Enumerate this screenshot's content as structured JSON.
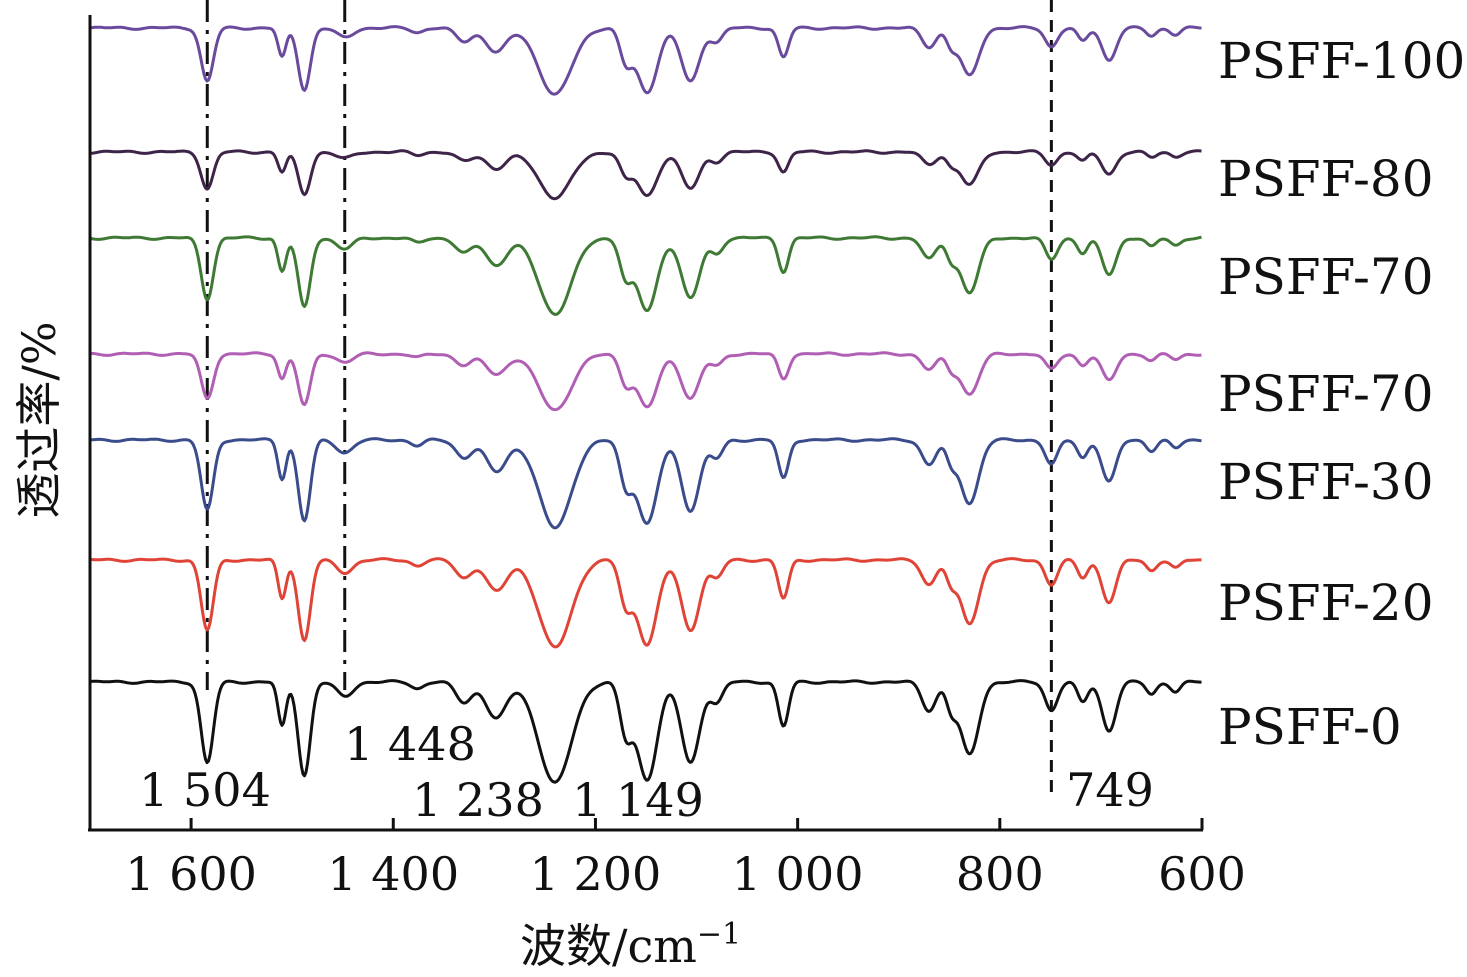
{
  "chart_data": {
    "type": "line",
    "xlabel": "波数/cm",
    "xlabel_sup": "−1",
    "ylabel": "透过率/%",
    "xlim": [
      1700,
      600
    ],
    "x_reversed": true,
    "x_ticks": [
      {
        "value": 1600,
        "label": "1 600"
      },
      {
        "value": 1400,
        "label": "1 400"
      },
      {
        "value": 1200,
        "label": "1 200"
      },
      {
        "value": 1000,
        "label": "1 000"
      },
      {
        "value": 800,
        "label": "800"
      },
      {
        "value": 600,
        "label": "600"
      }
    ],
    "y_ticks": "none",
    "grid": false,
    "legend": "none (series labeled at right end of each curve)",
    "peaks": [
      {
        "x": 1504,
        "x_label": "1 504"
      },
      {
        "x": 1448,
        "x_label": "1 448"
      },
      {
        "x": 1238,
        "x_label": "1 238"
      },
      {
        "x": 1149,
        "x_label": "1 149"
      },
      {
        "x": 749,
        "x_label": "749"
      }
    ],
    "reference_lines": [
      {
        "x": 1584,
        "style": "dash-dot"
      },
      {
        "x": 1448,
        "style": "dash-dot"
      },
      {
        "x": 749,
        "style": "dashed"
      }
    ],
    "absorption_bands": [
      {
        "x": 1584,
        "depth": 1.0,
        "width": 6
      },
      {
        "x": 1510,
        "depth": 0.55,
        "width": 4
      },
      {
        "x": 1488,
        "depth": 1.15,
        "width": 6
      },
      {
        "x": 1448,
        "depth": 0.18,
        "width": 8
      },
      {
        "x": 1376,
        "depth": 0.08,
        "width": 6
      },
      {
        "x": 1330,
        "depth": 0.25,
        "width": 8
      },
      {
        "x": 1298,
        "depth": 0.45,
        "width": 10
      },
      {
        "x": 1240,
        "depth": 1.25,
        "width": 16
      },
      {
        "x": 1170,
        "depth": 0.6,
        "width": 6
      },
      {
        "x": 1149,
        "depth": 1.2,
        "width": 10
      },
      {
        "x": 1106,
        "depth": 1.0,
        "width": 9
      },
      {
        "x": 1080,
        "depth": 0.25,
        "width": 6
      },
      {
        "x": 1014,
        "depth": 0.55,
        "width": 5
      },
      {
        "x": 870,
        "depth": 0.35,
        "width": 7
      },
      {
        "x": 848,
        "depth": 0.3,
        "width": 5
      },
      {
        "x": 830,
        "depth": 0.9,
        "width": 9
      },
      {
        "x": 749,
        "depth": 0.35,
        "width": 6
      },
      {
        "x": 718,
        "depth": 0.25,
        "width": 5
      },
      {
        "x": 692,
        "depth": 0.6,
        "width": 7
      },
      {
        "x": 650,
        "depth": 0.15,
        "width": 5
      },
      {
        "x": 626,
        "depth": 0.12,
        "width": 5
      }
    ],
    "series": [
      {
        "name": "PSFF-100",
        "color": "#6a4a9c",
        "scale": 0.95
      },
      {
        "name": "PSFF-80",
        "color": "#3d2448",
        "scale": 0.65
      },
      {
        "name": "PSFF-70",
        "color": "#3f7a35",
        "scale": 0.95
      },
      {
        "name": "PSFF-70",
        "color": "#b05fb4",
        "scale": 0.85
      },
      {
        "name": "PSFF-30",
        "color": "#3a4c8c",
        "scale": 1.1
      },
      {
        "name": "PSFF-20",
        "color": "#e04436",
        "scale": 1.1
      },
      {
        "name": "PSFF-0",
        "color": "#111111",
        "scale": 1.2
      }
    ]
  }
}
